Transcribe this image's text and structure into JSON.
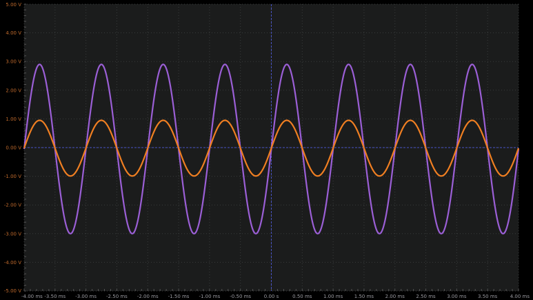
{
  "chart_data": {
    "type": "line",
    "title": "",
    "xlabel": "",
    "ylabel": "",
    "xlim": [
      -4.0,
      4.0
    ],
    "ylim": [
      -5.0,
      5.0
    ],
    "x_unit": "ms",
    "y_unit": "V",
    "grid": true,
    "x_tick_labels": [
      "-4.00 ms",
      "-3.50 ms",
      "-3.00 ms",
      "-2.50 ms",
      "-2.00 ms",
      "-1.50 ms",
      "-1.00 ms",
      "-0.50 ms",
      "0.00 s",
      "0.50 ms",
      "1.00 ms",
      "1.50 ms",
      "2.00 ms",
      "2.50 ms",
      "3.00 ms",
      "3.50 ms",
      "4.00 ms"
    ],
    "y_tick_labels": [
      "5.00 V",
      "4.00 V",
      "3.00 V",
      "2.00 V",
      "1.00 V",
      "0.00 V",
      "-1.00 V",
      "-2.00 V",
      "-3.00 V",
      "-4.00 V",
      "-5.00 V"
    ],
    "series": [
      {
        "waveform": "sine",
        "amplitude_v": 2.95,
        "offset_v": -0.05,
        "frequency_khz": 1.0,
        "phase_deg": 0,
        "color": "#9b5fd6"
      },
      {
        "waveform": "sine",
        "amplitude_v": 0.97,
        "offset_v": -0.02,
        "frequency_khz": 1.0,
        "phase_deg": 0,
        "color": "#f07f22"
      }
    ],
    "colors": {
      "background": "#000000",
      "plot_background": "#1b1c1c",
      "grid": "#3a3c3c",
      "crosshair": "#4a55c8",
      "y_label": "#c06a2c",
      "x_label": "#9a9aa0"
    }
  }
}
